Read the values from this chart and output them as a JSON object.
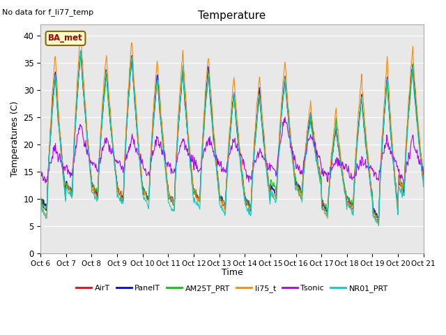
{
  "title": "Temperature",
  "ylabel": "Temperatures (C)",
  "xlabel": "Time",
  "annotation_text": "No data for f_li77_temp",
  "legend_label_text": "BA_met",
  "ylim": [
    0,
    42
  ],
  "yticks": [
    0,
    5,
    10,
    15,
    20,
    25,
    30,
    35,
    40
  ],
  "n_days": 15,
  "n_points_per_day": 48,
  "background_color": "#e8e8e8",
  "series": [
    {
      "name": "AirT",
      "color": "#ff0000",
      "lw": 0.8
    },
    {
      "name": "PanelT",
      "color": "#0000ff",
      "lw": 0.8
    },
    {
      "name": "AM25T_PRT",
      "color": "#00cc00",
      "lw": 0.8
    },
    {
      "name": "li75_t",
      "color": "#ff8800",
      "lw": 0.8
    },
    {
      "name": "Tsonic",
      "color": "#aa00ff",
      "lw": 0.8
    },
    {
      "name": "NR01_PRT",
      "color": "#00cccc",
      "lw": 0.8
    }
  ],
  "xtick_labels": [
    "Oct 6",
    "Oct 7",
    "Oct 8",
    "Oct 9",
    "Oct 10",
    "Oct 11",
    "Oct 12",
    "Oct 13",
    "Oct 14",
    "Oct 15",
    "Oct 16",
    "Oct 17",
    "Oct 18",
    "Oct 19",
    "Oct 20",
    "Oct 21"
  ],
  "day_peaks": [
    33.0,
    37.5,
    33.5,
    36.5,
    32.5,
    34.0,
    33.5,
    29.5,
    29.5,
    32.5,
    25.0,
    23.5,
    29.0,
    32.0,
    34.5
  ],
  "day_troughs": [
    7.5,
    11.0,
    10.5,
    10.0,
    9.5,
    9.0,
    9.5,
    8.5,
    8.0,
    10.5,
    11.0,
    7.5,
    8.0,
    6.0,
    11.5
  ],
  "tsonic_peaks": [
    19.5,
    24.0,
    21.0,
    21.0,
    21.5,
    21.0,
    21.0,
    21.0,
    19.0,
    25.0,
    22.0,
    17.0,
    17.0,
    21.0,
    21.0
  ],
  "tsonic_troughs": [
    13.0,
    14.0,
    15.0,
    15.0,
    14.0,
    14.5,
    14.5,
    14.5,
    13.5,
    14.5,
    14.5,
    13.5,
    13.5,
    13.5,
    13.0
  ]
}
